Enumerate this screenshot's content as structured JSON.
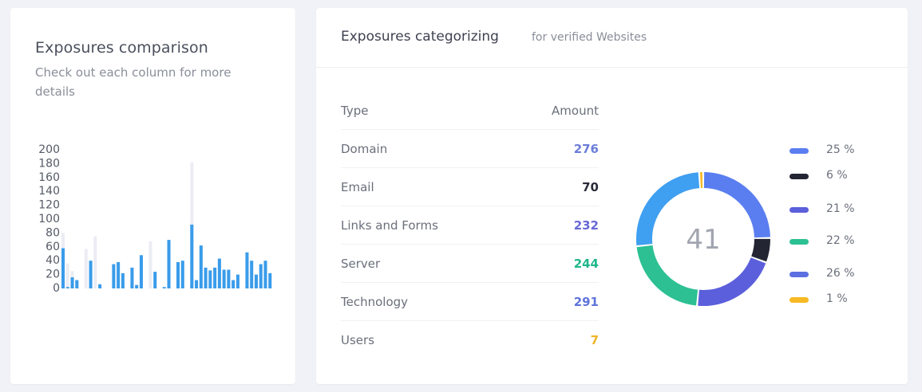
{
  "comparison": {
    "title": "Exposures comparison",
    "subtitle": "Check out each column for more details",
    "chart_data": {
      "type": "bar",
      "title": "",
      "ylim": [
        0,
        200
      ],
      "ytick_labels": [
        "0",
        "20",
        "40",
        "60",
        "80",
        "100",
        "120",
        "140",
        "160",
        "180",
        "200"
      ],
      "series": [
        {
          "values": [
            58,
            2,
            16,
            12,
            0,
            0,
            40,
            0,
            6,
            0,
            0,
            35,
            38,
            22,
            0,
            30,
            5,
            48,
            0,
            0,
            24,
            0,
            2,
            70,
            0,
            38,
            40,
            0,
            92,
            12,
            62,
            30,
            26,
            30,
            43,
            27,
            27,
            12,
            20,
            0,
            52,
            40,
            20,
            35,
            40,
            22
          ]
        },
        {
          "values": [
            80,
            36,
            25,
            0,
            0,
            57,
            0,
            75,
            0,
            0,
            0,
            0,
            0,
            0,
            0,
            0,
            0,
            0,
            0,
            68,
            0,
            0,
            0,
            0,
            0,
            0,
            0,
            0,
            182,
            0,
            0,
            0,
            0,
            0,
            0,
            0,
            0,
            0,
            0,
            0,
            0,
            0,
            0,
            0,
            0,
            0
          ]
        }
      ],
      "colors": [
        "#3a9cea",
        "#ececf4"
      ]
    }
  },
  "categorizing": {
    "title": "Exposures categorizing",
    "subtitle": "for verified Websites",
    "table": {
      "headers": [
        "Type",
        "Amount"
      ],
      "rows": [
        {
          "type": "Domain",
          "amount": "276",
          "color": "#6b7dd8"
        },
        {
          "type": "Email",
          "amount": "70",
          "color": "#2a2c38"
        },
        {
          "type": "Links and Forms",
          "amount": "232",
          "color": "#6768d6"
        },
        {
          "type": "Server",
          "amount": "244",
          "color": "#20b68c"
        },
        {
          "type": "Technology",
          "amount": "291",
          "color": "#5e73d9"
        },
        {
          "type": "Users",
          "amount": "7",
          "color": "#f0b429"
        }
      ]
    },
    "donut": {
      "center_value": "41",
      "chart_data": {
        "type": "pie",
        "values": [
          25,
          6,
          21,
          22,
          26,
          1
        ],
        "colors": [
          "#5a7ef0",
          "#232533",
          "#5b5fdb",
          "#2cc093",
          "#3f9ff0",
          "#f7b924"
        ],
        "labels": [
          "25 %",
          "6 %",
          "21 %",
          "22 %",
          "26 %",
          "1 %"
        ]
      }
    },
    "legend": [
      {
        "label": "25 %",
        "color": "#5a7ef0"
      },
      {
        "label": "6 %",
        "color": "#232533"
      },
      {
        "label": "21 %",
        "color": "#5b5fdb"
      },
      {
        "label": "22 %",
        "color": "#2cc093"
      },
      {
        "label": "26 %",
        "color": "#5b6fe0"
      },
      {
        "label": "1 %",
        "color": "#f7b924"
      }
    ]
  }
}
